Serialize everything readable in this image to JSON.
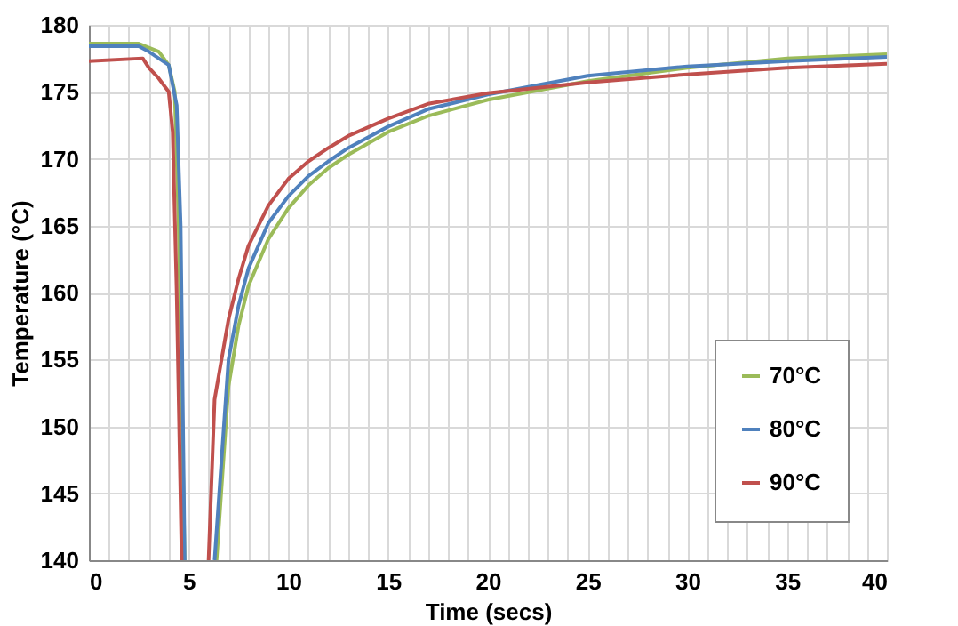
{
  "chart_data": {
    "type": "line",
    "xlabel": "Time (secs)",
    "ylabel": "Temperature (°C)",
    "xlim": [
      0,
      40
    ],
    "ylim": [
      140,
      180
    ],
    "xticks": [
      0,
      {
        "value": 1,
        "label": null
      },
      {
        "value": 2,
        "label": null
      },
      {
        "value": 3,
        "label": null
      },
      {
        "value": 4,
        "label": null
      },
      5,
      {
        "value": 6,
        "label": null
      },
      {
        "value": 7,
        "label": null
      },
      {
        "value": 8,
        "label": null
      },
      {
        "value": 9,
        "label": null
      },
      10,
      {
        "value": 11,
        "label": null
      },
      {
        "value": 12,
        "label": null
      },
      {
        "value": 13,
        "label": null
      },
      {
        "value": 14,
        "label": null
      },
      15,
      {
        "value": 16,
        "label": null
      },
      {
        "value": 17,
        "label": null
      },
      {
        "value": 18,
        "label": null
      },
      {
        "value": 19,
        "label": null
      },
      20,
      {
        "value": 21,
        "label": null
      },
      {
        "value": 22,
        "label": null
      },
      {
        "value": 23,
        "label": null
      },
      {
        "value": 24,
        "label": null
      },
      25,
      {
        "value": 26,
        "label": null
      },
      {
        "value": 27,
        "label": null
      },
      {
        "value": 28,
        "label": null
      },
      {
        "value": 29,
        "label": null
      },
      30,
      {
        "value": 31,
        "label": null
      },
      {
        "value": 32,
        "label": null
      },
      {
        "value": 33,
        "label": null
      },
      {
        "value": 34,
        "label": null
      },
      35,
      {
        "value": 36,
        "label": null
      },
      {
        "value": 37,
        "label": null
      },
      {
        "value": 38,
        "label": null
      },
      {
        "value": 39,
        "label": null
      },
      40
    ],
    "yticks": [
      140,
      145,
      150,
      155,
      160,
      165,
      170,
      175,
      180
    ],
    "grid": true,
    "legend": "bottom right",
    "marker": "none",
    "line_style": "solid",
    "series": [
      {
        "name": "70°C",
        "color": "#9bbb59",
        "x": [
          0,
          2.5,
          3,
          3.5,
          4,
          4.3,
          4.5,
          4.8,
          5.5,
          6.4,
          7,
          7.5,
          8,
          9,
          10,
          11,
          12,
          13,
          15,
          17,
          20,
          25,
          30,
          35,
          40
        ],
        "values": [
          178.6,
          178.6,
          178.3,
          178,
          177,
          175,
          165,
          140,
          null,
          140,
          153,
          157.5,
          160.5,
          164,
          166.3,
          168,
          169.3,
          170.3,
          172,
          173.2,
          174.4,
          175.8,
          176.8,
          177.5,
          177.8
        ]
      },
      {
        "name": "80°C",
        "color": "#4f81bd",
        "x": [
          0,
          2.5,
          3,
          4,
          4.4,
          4.6,
          4.8,
          5.5,
          6.3,
          7,
          7.5,
          8,
          9,
          10,
          11,
          12,
          13,
          15,
          17,
          20,
          25,
          30,
          35,
          40
        ],
        "values": [
          178.4,
          178.4,
          178,
          177,
          174,
          165,
          140,
          null,
          140,
          155,
          159,
          161.8,
          165.2,
          167.2,
          168.7,
          169.8,
          170.8,
          172.4,
          173.7,
          174.8,
          176.2,
          176.9,
          177.3,
          177.6
        ]
      },
      {
        "name": "90°C",
        "color": "#c0504d",
        "x": [
          0,
          2.7,
          3,
          3.5,
          4,
          4.2,
          4.4,
          4.65,
          5.3,
          6,
          6.3,
          7,
          7.5,
          8,
          9,
          10,
          11,
          12,
          13,
          15,
          17,
          20,
          25,
          30,
          35,
          40
        ],
        "values": [
          177.3,
          177.5,
          176.8,
          176,
          175,
          172,
          160,
          140,
          null,
          140,
          152,
          158,
          161,
          163.5,
          166.5,
          168.5,
          169.8,
          170.8,
          171.7,
          173,
          174.1,
          174.9,
          175.7,
          176.3,
          176.8,
          177.1
        ]
      }
    ]
  }
}
